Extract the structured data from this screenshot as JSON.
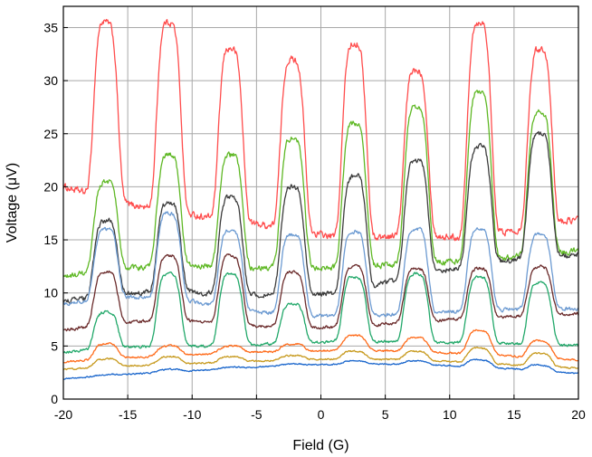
{
  "chart_data": {
    "type": "line",
    "title": "",
    "xlabel": "Field (G)",
    "ylabel": "Voltage (μV)",
    "xlim": [
      -20,
      20
    ],
    "ylim": [
      0,
      37
    ],
    "xticks": [
      -20,
      -15,
      -10,
      -5,
      0,
      5,
      10,
      15,
      20
    ],
    "yticks": [
      0,
      5,
      10,
      15,
      20,
      25,
      30,
      35
    ],
    "grid": true,
    "legend": "none",
    "peak_positions": [
      -16.7,
      -11.8,
      -7.0,
      -2.2,
      2.6,
      7.4,
      12.3,
      17.0
    ],
    "series": [
      {
        "color": "#ff4d4d",
        "baseline": [
          20.0,
          18.5,
          17.5,
          16.8,
          16.0,
          15.0,
          15.5,
          15.2,
          16.0,
          17.0
        ],
        "peak_values": [
          35.5,
          35.5,
          33.0,
          32.0,
          33.5,
          31.0,
          35.5,
          33.0
        ]
      },
      {
        "color": "#5fb825",
        "baseline": [
          11.5,
          12.3,
          12.6,
          12.4,
          12.4,
          12.3,
          12.8,
          13.0,
          13.5,
          14.0
        ],
        "peak_values": [
          20.5,
          23.0,
          23.0,
          24.5,
          26.0,
          27.5,
          29.0,
          27.0
        ]
      },
      {
        "color": "#3d3d3d",
        "baseline": [
          9.2,
          9.9,
          10.2,
          9.8,
          9.8,
          10.0,
          11.5,
          12.5,
          13.2,
          13.6
        ],
        "peak_values": [
          16.8,
          18.5,
          19.0,
          20.0,
          21.0,
          22.5,
          23.8,
          25.0
        ]
      },
      {
        "color": "#6d9bd2",
        "baseline": [
          9.0,
          9.6,
          9.5,
          8.4,
          7.9,
          7.8,
          8.0,
          8.3,
          8.5,
          8.5
        ],
        "peak_values": [
          16.0,
          17.5,
          15.8,
          15.5,
          15.8,
          16.0,
          16.0,
          15.5
        ]
      },
      {
        "color": "#6b2c2c",
        "baseline": [
          6.5,
          7.2,
          7.5,
          7.0,
          6.7,
          6.8,
          7.2,
          7.6,
          7.8,
          8.0
        ],
        "peak_values": [
          12.0,
          13.5,
          13.5,
          12.0,
          12.5,
          12.3,
          12.3,
          12.5
        ]
      },
      {
        "color": "#22a86a",
        "baseline": [
          4.4,
          4.9,
          5.0,
          5.0,
          5.3,
          5.4,
          5.4,
          5.3,
          5.2,
          5.0
        ],
        "peak_values": [
          8.2,
          11.8,
          11.8,
          9.0,
          11.5,
          11.8,
          11.5,
          11.0
        ]
      },
      {
        "color": "#ff6b1a",
        "baseline": [
          3.5,
          3.9,
          4.1,
          4.4,
          4.5,
          4.6,
          4.5,
          4.3,
          4.0,
          3.7
        ],
        "peak_values": [
          5.2,
          5.0,
          5.0,
          5.2,
          6.0,
          5.8,
          6.5,
          5.5
        ]
      },
      {
        "color": "#c79a1e",
        "baseline": [
          2.8,
          3.1,
          3.3,
          3.5,
          3.7,
          3.8,
          3.7,
          3.5,
          3.2,
          2.9
        ],
        "peak_values": [
          3.8,
          4.0,
          4.0,
          4.1,
          4.5,
          4.5,
          4.8,
          4.3
        ]
      },
      {
        "color": "#1a66cc",
        "baseline": [
          1.9,
          2.3,
          2.6,
          2.9,
          3.2,
          3.3,
          3.3,
          3.1,
          2.8,
          2.4
        ],
        "peak_values": [
          2.3,
          2.8,
          3.0,
          3.3,
          3.6,
          3.6,
          3.7,
          3.2
        ]
      }
    ]
  }
}
